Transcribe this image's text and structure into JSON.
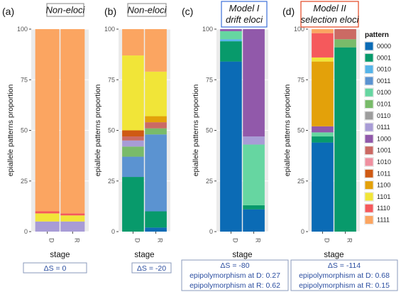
{
  "chart_data": {
    "type": "bar",
    "stacked": true,
    "ylim": [
      0,
      100
    ],
    "yticks": [
      "0",
      "25",
      "50",
      "75",
      "100"
    ],
    "categories": [
      "D",
      "R"
    ],
    "xlabel": "stage",
    "ylabel": "epiallele patterns proportion",
    "legend": {
      "title": "pattern",
      "placement": "right",
      "entries": [
        {
          "label": "0000",
          "color": "#0b6bb5"
        },
        {
          "label": "0001",
          "color": "#089a6b"
        },
        {
          "label": "0010",
          "color": "#56b4e9"
        },
        {
          "label": "0011",
          "color": "#5b93d1"
        },
        {
          "label": "0100",
          "color": "#66d6a1"
        },
        {
          "label": "0101",
          "color": "#79bb6a"
        },
        {
          "label": "0110",
          "color": "#9d9d9d"
        },
        {
          "label": "0111",
          "color": "#a89cd6"
        },
        {
          "label": "1000",
          "color": "#9159aa"
        },
        {
          "label": "1001",
          "color": "#cb6a64"
        },
        {
          "label": "1010",
          "color": "#ef90a0"
        },
        {
          "label": "1011",
          "color": "#cf5a14"
        },
        {
          "label": "1100",
          "color": "#e3a10a"
        },
        {
          "label": "1101",
          "color": "#f1e538"
        },
        {
          "label": "1110",
          "color": "#f5595c"
        },
        {
          "label": "1111",
          "color": "#fba561"
        }
      ]
    },
    "panels": [
      {
        "letter": "(a)",
        "title_lines": [
          "Non-eloci"
        ],
        "title_box_color": "#9a9a9a",
        "info_lines": [
          "ΔS = 0"
        ],
        "bars": {
          "D": [
            {
              "pattern": "0111",
              "value": 5
            },
            {
              "pattern": "1101",
              "value": 4
            },
            {
              "pattern": "1110",
              "value": 1
            },
            {
              "pattern": "1111",
              "value": 90
            }
          ],
          "R": [
            {
              "pattern": "0111",
              "value": 5
            },
            {
              "pattern": "1101",
              "value": 3
            },
            {
              "pattern": "1110",
              "value": 1
            },
            {
              "pattern": "1111",
              "value": 91
            }
          ]
        }
      },
      {
        "letter": "(b)",
        "title_lines": [
          "Non-eloci"
        ],
        "title_box_color": "#9a9a9a",
        "info_lines": [
          "ΔS = -20"
        ],
        "bars": {
          "D": [
            {
              "pattern": "0001",
              "value": 27
            },
            {
              "pattern": "0011",
              "value": 10
            },
            {
              "pattern": "0101",
              "value": 5
            },
            {
              "pattern": "0111",
              "value": 3
            },
            {
              "pattern": "1001",
              "value": 2
            },
            {
              "pattern": "1011",
              "value": 3
            },
            {
              "pattern": "1101",
              "value": 37
            },
            {
              "pattern": "1111",
              "value": 13
            }
          ],
          "R": [
            {
              "pattern": "0000",
              "value": 2
            },
            {
              "pattern": "0001",
              "value": 8
            },
            {
              "pattern": "0011",
              "value": 38
            },
            {
              "pattern": "0101",
              "value": 3
            },
            {
              "pattern": "1001",
              "value": 3
            },
            {
              "pattern": "1100",
              "value": 3
            },
            {
              "pattern": "1101",
              "value": 22
            },
            {
              "pattern": "1111",
              "value": 21
            }
          ]
        }
      },
      {
        "letter": "(c)",
        "title_lines": [
          "Model I",
          "drift eloci"
        ],
        "title_box_color": "#3b6fd8",
        "info_lines": [
          "ΔS = -80",
          "epipolymorphism at D: 0.27",
          "epipolymorphism at R: 0.62"
        ],
        "bars": {
          "D": [
            {
              "pattern": "0000",
              "value": 84
            },
            {
              "pattern": "0001",
              "value": 10
            },
            {
              "pattern": "0010",
              "value": 1
            },
            {
              "pattern": "0100",
              "value": 4
            },
            {
              "pattern": "1000",
              "value": 1
            }
          ],
          "R": [
            {
              "pattern": "0000",
              "value": 11
            },
            {
              "pattern": "0001",
              "value": 2
            },
            {
              "pattern": "0100",
              "value": 30
            },
            {
              "pattern": "0111",
              "value": 4
            },
            {
              "pattern": "1000",
              "value": 53
            }
          ]
        }
      },
      {
        "letter": "(d)",
        "title_lines": [
          "Model II",
          "selection eloci"
        ],
        "title_box_color": "#e3441f",
        "info_lines": [
          "ΔS = -114",
          "epipolymorphism at D: 0.68",
          "epipolymorphism at R: 0.15"
        ],
        "bars": {
          "D": [
            {
              "pattern": "0000",
              "value": 44
            },
            {
              "pattern": "0001",
              "value": 3
            },
            {
              "pattern": "0100",
              "value": 2
            },
            {
              "pattern": "1000",
              "value": 3
            },
            {
              "pattern": "1100",
              "value": 32
            },
            {
              "pattern": "1101",
              "value": 2
            },
            {
              "pattern": "1110",
              "value": 12
            },
            {
              "pattern": "1111",
              "value": 2
            }
          ],
          "R": [
            {
              "pattern": "0001",
              "value": 91
            },
            {
              "pattern": "0101",
              "value": 4
            },
            {
              "pattern": "1001",
              "value": 5
            }
          ]
        }
      }
    ]
  }
}
